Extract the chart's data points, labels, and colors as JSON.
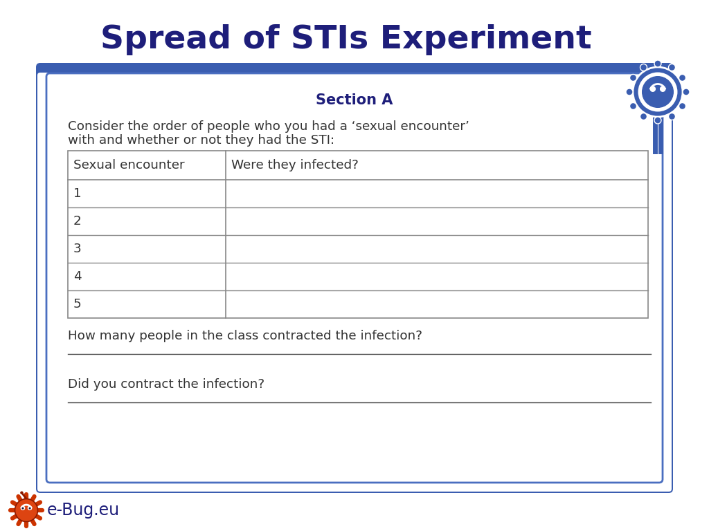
{
  "title": "Spread of STIs Experiment",
  "title_color": "#1e1e7a",
  "title_fontsize": 34,
  "section_title": "Section A",
  "section_title_color": "#1e1e7a",
  "body_text_color": "#333333",
  "intro_text_line1": "Consider the order of people who you had a ‘sexual encounter’",
  "intro_text_line2": "with and whether or not they had the STI:",
  "table_col1_header": "Sexual encounter",
  "table_col2_header": "Were they infected?",
  "table_rows": [
    "1",
    "2",
    "3",
    "4",
    "5"
  ],
  "question1": "How many people in the class contracted the infection?",
  "question2": "Did you contract the infection?",
  "border_color": "#3a5db0",
  "inner_border_color": "#4a6ec0",
  "background_color": "#ffffff",
  "footer_text": "e-Bug.eu",
  "footer_text_color": "#1e1e7a",
  "table_border_color": "#888888",
  "icon_blue": "#3a5db0"
}
